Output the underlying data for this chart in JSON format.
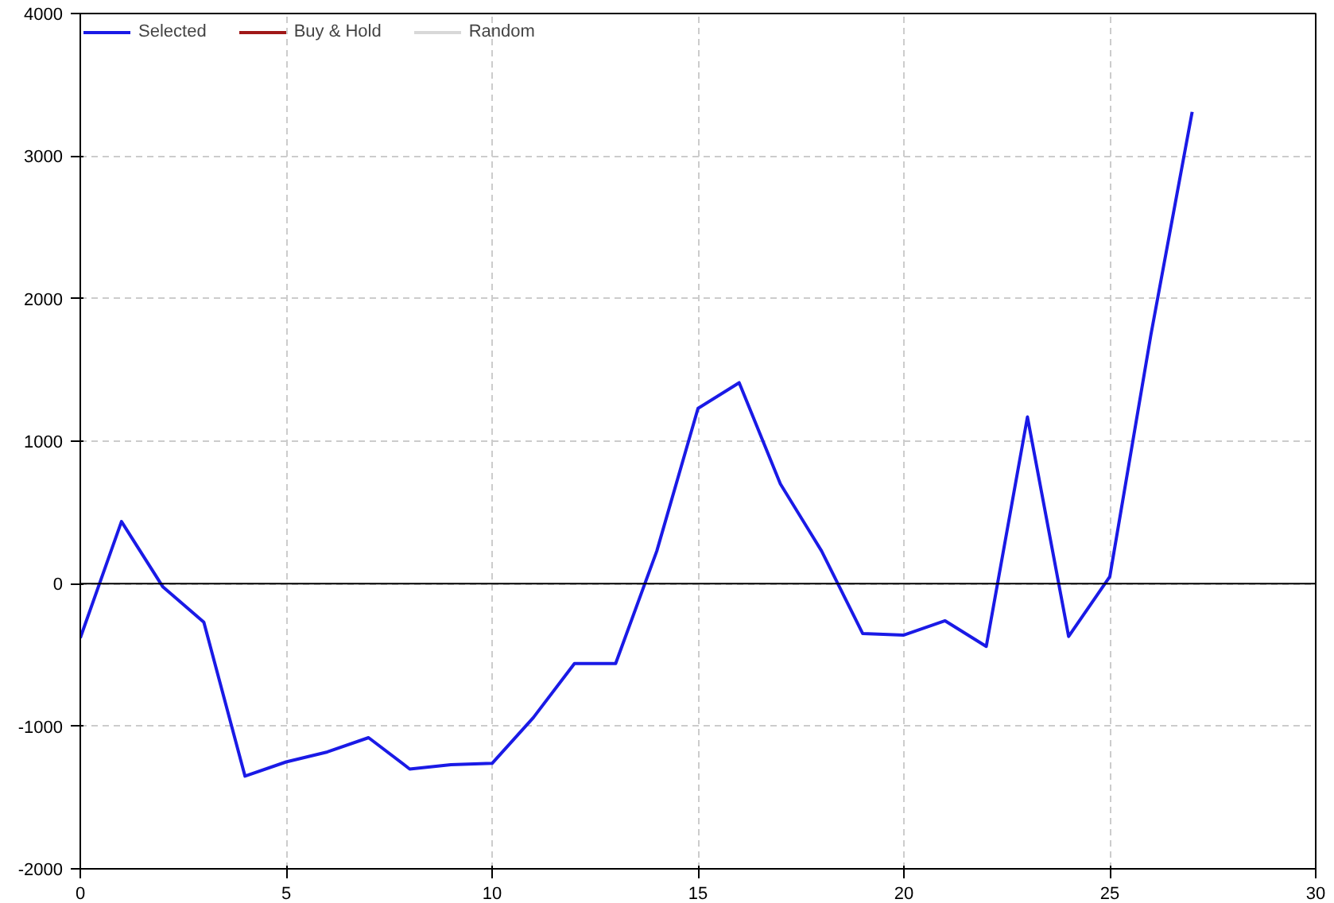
{
  "chart_data": {
    "type": "line",
    "x": [
      0,
      1,
      2,
      3,
      4,
      5,
      6,
      7,
      8,
      9,
      10,
      11,
      12,
      13,
      14,
      15,
      16,
      17,
      18,
      19,
      20,
      21,
      22,
      23,
      24,
      25,
      26,
      27
    ],
    "series": [
      {
        "name": "Selected",
        "color": "#1a1ae6",
        "values": [
          -380,
          436,
          -20,
          -270,
          -1350,
          -1250,
          -1180,
          -1080,
          -1300,
          -1270,
          -1260,
          -940,
          -560,
          -560,
          230,
          1230,
          1410,
          700,
          230,
          -350,
          -360,
          -260,
          -440,
          1170,
          -370,
          50,
          1750,
          3310
        ]
      },
      {
        "name": "Buy & Hold",
        "color": "#a01818",
        "values": [
          null,
          null,
          null,
          null,
          null,
          null,
          null,
          null,
          null,
          null,
          null,
          null,
          null,
          null,
          null,
          null,
          null,
          null,
          null,
          null,
          null,
          null,
          null,
          null,
          null,
          null,
          null,
          null
        ]
      },
      {
        "name": "Random",
        "color": "#d8d8d8",
        "values": [
          null,
          null,
          null,
          null,
          null,
          null,
          null,
          null,
          null,
          null,
          null,
          null,
          null,
          null,
          null,
          null,
          null,
          null,
          null,
          null,
          null,
          null,
          null,
          null,
          null,
          null,
          null,
          null
        ]
      }
    ],
    "xlim": [
      0,
      30
    ],
    "xticks": [
      0,
      5,
      10,
      15,
      20,
      25,
      30
    ],
    "ylim": [
      -2000,
      4000
    ],
    "yticks": [
      -2000,
      -1000,
      0,
      1000,
      2000,
      3000,
      4000
    ],
    "ref_lines": [
      {
        "axis": "y",
        "value": 0,
        "color": "#000000"
      }
    ],
    "grid": true,
    "legend": "top left",
    "line_style": "solid",
    "marker": "none"
  }
}
